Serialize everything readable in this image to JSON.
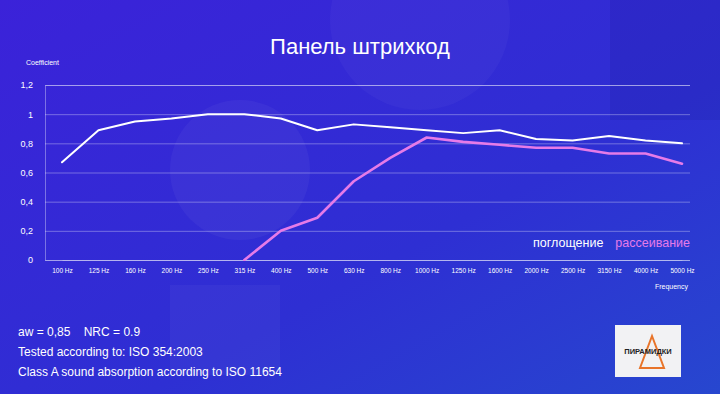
{
  "chart_data": {
    "type": "line",
    "title": "Панель штрихкод",
    "y_label": "Coefficient",
    "x_label": "Frequency",
    "categories": [
      "100 Hz",
      "125 Hz",
      "160 Hz",
      "200 Hz",
      "250 Hz",
      "315 Hz",
      "400 Hz",
      "500 Hz",
      "630 Hz",
      "800 Hz",
      "1000 Hz",
      "1250 Hz",
      "1600 Hz",
      "2000 Hz",
      "2500 Hz",
      "3150 Hz",
      "4000 Hz",
      "5000 Hz"
    ],
    "series": [
      {
        "name": "поглощение",
        "color": "#ffffff",
        "values": [
          0.67,
          0.89,
          0.95,
          0.97,
          1.0,
          1.0,
          0.97,
          0.89,
          0.93,
          0.91,
          0.89,
          0.87,
          0.89,
          0.83,
          0.82,
          0.85,
          0.82,
          0.8
        ]
      },
      {
        "name": "рассеивание",
        "color": "#e67be8",
        "values": [
          null,
          null,
          null,
          null,
          null,
          0,
          0.2,
          0.29,
          0.54,
          0.7,
          0.84,
          0.81,
          0.79,
          0.77,
          0.77,
          0.73,
          0.73,
          0.66
        ]
      }
    ],
    "ylim": [
      0,
      1.2
    ],
    "yticks": [
      0,
      {
        "value": 0.2,
        "label": "0,2"
      },
      {
        "value": 0.4,
        "label": "0,4"
      },
      {
        "value": 0.6,
        "label": "0,6"
      },
      {
        "value": 0.8,
        "label": "0,8"
      },
      1,
      {
        "value": 1.2,
        "label": "1,2"
      }
    ],
    "grid": true,
    "legend": "lower right",
    "annotations": [
      "aw = 0,85    NRC = 0.9",
      "Tested according to: ISO 354:2003",
      "Class A sound absorption according to ISO 11654"
    ],
    "logo_text": "ПИРАМИДКИ"
  }
}
